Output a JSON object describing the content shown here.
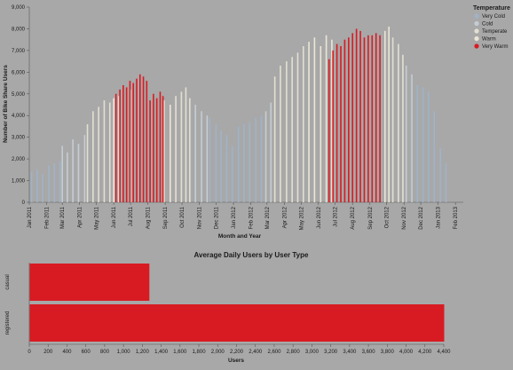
{
  "chart_data": [
    {
      "type": "bar",
      "xlabel": "Month and Year",
      "ylabel": "Number of Bike Share Users",
      "ylim": [
        0,
        9000
      ],
      "yticks": [
        "0",
        "1,000",
        "2,000",
        "3,000",
        "4,000",
        "5,000",
        "6,000",
        "7,000",
        "8,000",
        "9,000"
      ],
      "xticks": [
        "Jan 2011",
        "Feb 2011",
        "Mar 2011",
        "Apr 2011",
        "May 2011",
        "Jun 2011",
        "Jul 2011",
        "Aug 2011",
        "Sep 2011",
        "Oct 2011",
        "Nov 2011",
        "Dec 2011",
        "Jan 2012",
        "Feb 2012",
        "Mar 2012",
        "Apr 2012",
        "May 2012",
        "Jun 2012",
        "Jul 2012",
        "Aug 2012",
        "Sep 2012",
        "Oct 2012",
        "Nov 2012",
        "Dec 2012",
        "Jan 2013",
        "Feb 2013"
      ],
      "x_domain": [
        "2011-01-01",
        "2013-02-15"
      ],
      "legend": {
        "title": "Temperature",
        "position": "top-right",
        "items": [
          {
            "label": "Very Cold",
            "color": "#9fb3c8"
          },
          {
            "label": "Cold",
            "color": "#c5cdd3"
          },
          {
            "label": "Temperate",
            "color": "#e3dfd2"
          },
          {
            "label": "Warm",
            "color": "#ece6d6"
          },
          {
            "label": "Very Warm",
            "color": "#d81b22"
          }
        ]
      },
      "series": [
        {
          "name": "Very Cold",
          "color": "#9fb3c8",
          "x": [
            "2011-01-05",
            "2011-01-15",
            "2011-01-25",
            "2011-02-05",
            "2011-02-15",
            "2011-02-25",
            "2011-11-20",
            "2011-12-01",
            "2011-12-10",
            "2011-12-20",
            "2011-12-30",
            "2012-01-10",
            "2012-01-20",
            "2012-01-30",
            "2012-02-10",
            "2012-02-20",
            "2012-11-25",
            "2012-12-05",
            "2012-12-15",
            "2012-12-25",
            "2013-01-05",
            "2013-01-15"
          ],
          "values": [
            1400,
            1500,
            1300,
            1700,
            1800,
            1900,
            3900,
            3600,
            3300,
            3100,
            2600,
            3500,
            3600,
            3700,
            3900,
            4000,
            5400,
            5300,
            5100,
            4200,
            2500,
            1800
          ]
        },
        {
          "name": "Cold",
          "color": "#c5cdd3",
          "x": [
            "2011-03-01",
            "2011-03-10",
            "2011-03-20",
            "2011-03-30",
            "2011-04-10",
            "2011-10-25",
            "2011-11-05",
            "2011-11-15",
            "2012-02-28",
            "2012-03-08",
            "2012-11-05",
            "2012-11-15"
          ],
          "values": [
            2600,
            2300,
            2900,
            2700,
            3100,
            4500,
            4200,
            4000,
            4200,
            4600,
            6300,
            5900
          ]
        },
        {
          "name": "Temperate",
          "color": "#e3dfd2",
          "x": [
            "2011-04-15",
            "2011-04-25",
            "2011-05-05",
            "2011-05-15",
            "2011-05-25",
            "2011-09-20",
            "2011-09-30",
            "2011-10-08",
            "2011-10-15",
            "2012-03-15",
            "2012-03-25",
            "2012-04-05",
            "2012-04-15",
            "2012-04-25",
            "2012-05-05",
            "2012-10-12",
            "2012-10-22",
            "2012-10-30"
          ],
          "values": [
            3600,
            4200,
            4400,
            4700,
            4600,
            4900,
            5100,
            5300,
            4800,
            5800,
            6300,
            6500,
            6700,
            6900,
            7200,
            7600,
            7300,
            6800
          ]
        },
        {
          "name": "Warm",
          "color": "#ece6d6",
          "x": [
            "2011-06-01",
            "2011-06-10",
            "2011-07-01",
            "2011-08-30",
            "2011-09-10",
            "2012-05-15",
            "2012-05-25",
            "2012-06-05",
            "2012-06-15",
            "2012-06-25",
            "2012-09-28",
            "2012-10-05"
          ],
          "values": [
            4800,
            4900,
            5200,
            4700,
            4500,
            7400,
            7600,
            7200,
            7700,
            7500,
            7900,
            8100
          ]
        },
        {
          "name": "Very Warm",
          "color": "#d81b22",
          "x": [
            "2011-06-05",
            "2011-06-12",
            "2011-06-18",
            "2011-06-24",
            "2011-06-30",
            "2011-07-06",
            "2011-07-12",
            "2011-07-18",
            "2011-07-24",
            "2011-07-30",
            "2011-08-05",
            "2011-08-11",
            "2011-08-17",
            "2011-08-23",
            "2011-08-28",
            "2012-06-20",
            "2012-06-27",
            "2012-07-04",
            "2012-07-11",
            "2012-07-18",
            "2012-07-25",
            "2012-08-01",
            "2012-08-08",
            "2012-08-15",
            "2012-08-22",
            "2012-08-29",
            "2012-09-05",
            "2012-09-12",
            "2012-09-19"
          ],
          "values": [
            5000,
            5200,
            5400,
            5300,
            5600,
            5500,
            5700,
            5900,
            5800,
            5600,
            4700,
            5000,
            4800,
            5100,
            4900,
            6600,
            7000,
            7300,
            7200,
            7500,
            7600,
            7800,
            8000,
            7900,
            7600,
            7700,
            7700,
            7800,
            7700
          ]
        }
      ]
    },
    {
      "type": "bar",
      "orientation": "horizontal",
      "title": "Average Daily Users by User Type",
      "xlabel": "Users",
      "ylabel": "",
      "categories": [
        "casual",
        "registered"
      ],
      "values": [
        1270,
        4400
      ],
      "xlim": [
        0,
        4400
      ],
      "xticks": [
        "0",
        "200",
        "400",
        "600",
        "800",
        "1,000",
        "1,200",
        "1,400",
        "1,600",
        "1,800",
        "2,000",
        "2,200",
        "2,400",
        "2,600",
        "2,800",
        "3,000",
        "3,200",
        "3,400",
        "3,600",
        "3,800",
        "4,000",
        "4,200",
        "4,400"
      ],
      "color": "#d81b22"
    }
  ]
}
